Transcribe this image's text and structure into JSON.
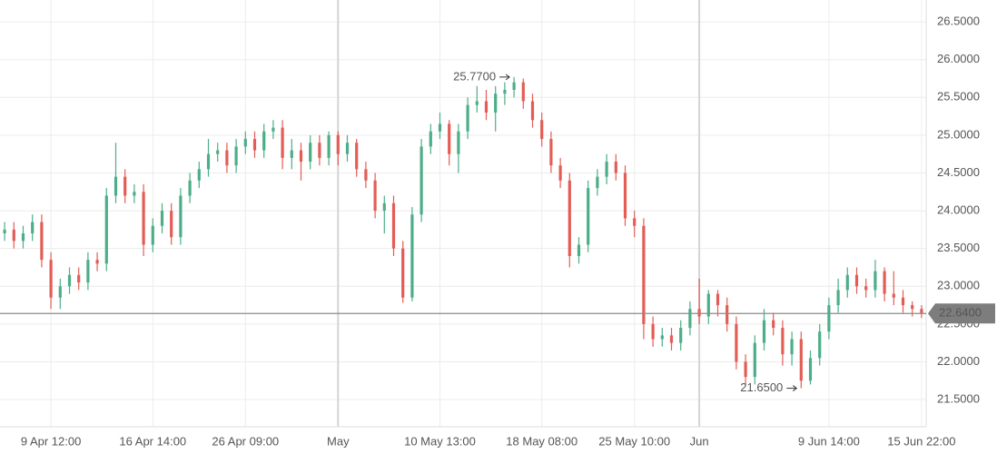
{
  "chart_data": {
    "type": "ohlc",
    "categories": [
      null,
      null,
      null,
      null,
      null,
      "9 Apr 12:00",
      null,
      null,
      null,
      null,
      null,
      null,
      null,
      null,
      null,
      null,
      "16 Apr 14:00",
      null,
      null,
      null,
      null,
      null,
      null,
      null,
      null,
      null,
      "26 Apr 09:00",
      null,
      null,
      null,
      null,
      null,
      null,
      null,
      null,
      null,
      "May",
      null,
      null,
      null,
      null,
      null,
      null,
      null,
      null,
      null,
      null,
      "10 May 13:00",
      null,
      null,
      null,
      null,
      null,
      null,
      null,
      null,
      null,
      null,
      "18 May 08:00",
      null,
      null,
      null,
      null,
      null,
      null,
      null,
      null,
      null,
      "25 May 10:00",
      null,
      null,
      null,
      null,
      null,
      null,
      "Jun",
      null,
      null,
      null,
      null,
      null,
      null,
      null,
      null,
      null,
      null,
      null,
      null,
      null,
      "9 Jun 14:00",
      null,
      null,
      null,
      null,
      null,
      null,
      null,
      null,
      null,
      "15 Jun 22:00"
    ],
    "open": [
      23.7,
      23.75,
      23.6,
      23.7,
      23.85,
      23.35,
      22.85,
      23.0,
      23.15,
      23.05,
      23.35,
      23.3,
      24.2,
      24.45,
      24.2,
      24.25,
      23.55,
      23.8,
      24.0,
      23.65,
      24.2,
      24.4,
      24.55,
      24.75,
      24.8,
      24.6,
      24.85,
      24.95,
      24.8,
      25.05,
      25.1,
      24.7,
      24.8,
      24.65,
      24.9,
      24.7,
      25.0,
      24.75,
      24.9,
      24.55,
      24.4,
      24.0,
      24.1,
      23.5,
      22.85,
      23.95,
      24.85,
      25.05,
      25.15,
      24.75,
      25.05,
      25.4,
      25.45,
      25.3,
      25.55,
      25.6,
      25.7,
      25.45,
      25.2,
      24.95,
      24.6,
      24.4,
      23.4,
      23.55,
      24.3,
      24.45,
      24.65,
      24.5,
      23.9,
      23.8,
      22.5,
      22.3,
      22.35,
      22.25,
      22.45,
      22.7,
      22.6,
      22.9,
      22.75,
      22.5,
      22.0,
      21.8,
      22.25,
      22.55,
      22.45,
      22.1,
      22.3,
      21.75,
      22.05,
      22.4,
      22.75,
      22.95,
      23.15,
      23.0,
      22.95,
      23.2,
      22.9,
      22.85,
      22.75,
      22.7
    ],
    "high": [
      23.85,
      23.85,
      23.8,
      23.95,
      23.95,
      23.45,
      23.1,
      23.25,
      23.25,
      23.45,
      23.45,
      24.3,
      24.9,
      24.55,
      24.35,
      24.35,
      23.9,
      24.1,
      24.1,
      24.3,
      24.5,
      24.65,
      24.95,
      24.9,
      24.9,
      24.95,
      25.05,
      25.05,
      25.15,
      25.2,
      25.2,
      24.95,
      24.9,
      25.0,
      25.0,
      25.05,
      25.05,
      25.0,
      24.95,
      24.65,
      24.5,
      24.2,
      24.2,
      23.6,
      24.05,
      24.95,
      25.15,
      25.3,
      25.2,
      25.15,
      25.5,
      25.65,
      25.6,
      25.65,
      25.7,
      25.77,
      25.75,
      25.55,
      25.3,
      25.05,
      24.7,
      24.5,
      23.65,
      24.4,
      24.55,
      24.75,
      24.75,
      24.6,
      24.0,
      23.9,
      22.6,
      22.45,
      22.45,
      22.55,
      22.8,
      23.1,
      22.95,
      22.95,
      22.85,
      22.6,
      22.1,
      22.35,
      22.7,
      22.65,
      22.55,
      22.4,
      22.4,
      22.15,
      22.5,
      22.85,
      23.1,
      23.25,
      23.25,
      23.1,
      23.35,
      23.25,
      23.2,
      22.95,
      22.8,
      22.75
    ],
    "low": [
      23.6,
      23.5,
      23.5,
      23.6,
      23.25,
      22.7,
      22.7,
      22.9,
      22.95,
      22.95,
      23.2,
      23.2,
      24.1,
      24.1,
      24.1,
      23.4,
      23.45,
      23.7,
      23.55,
      23.55,
      24.1,
      24.3,
      24.45,
      24.65,
      24.5,
      24.5,
      24.75,
      24.7,
      24.7,
      24.95,
      24.55,
      24.55,
      24.4,
      24.55,
      24.6,
      24.6,
      24.6,
      24.65,
      24.45,
      24.3,
      23.9,
      23.7,
      23.4,
      22.78,
      22.8,
      23.85,
      24.75,
      24.95,
      24.6,
      24.5,
      24.95,
      25.3,
      25.2,
      25.05,
      25.4,
      25.5,
      25.35,
      25.1,
      24.85,
      24.5,
      24.3,
      23.25,
      23.3,
      23.45,
      24.2,
      24.35,
      24.4,
      23.8,
      23.65,
      22.3,
      22.2,
      22.2,
      22.15,
      22.15,
      22.35,
      22.5,
      22.5,
      22.6,
      22.4,
      21.9,
      21.7,
      21.7,
      22.15,
      22.35,
      21.95,
      21.95,
      21.65,
      21.7,
      21.95,
      22.3,
      22.65,
      22.85,
      22.9,
      22.85,
      22.85,
      22.8,
      22.75,
      22.65,
      22.6,
      22.58
    ],
    "close": [
      23.75,
      23.6,
      23.7,
      23.85,
      23.35,
      22.85,
      23.0,
      23.15,
      23.05,
      23.35,
      23.3,
      24.2,
      24.45,
      24.2,
      24.25,
      23.55,
      23.8,
      24.0,
      23.65,
      24.2,
      24.4,
      24.55,
      24.75,
      24.8,
      24.6,
      24.85,
      24.95,
      24.8,
      25.05,
      25.1,
      24.7,
      24.8,
      24.65,
      24.9,
      24.7,
      25.0,
      24.75,
      24.9,
      24.55,
      24.4,
      24.0,
      24.1,
      23.5,
      22.85,
      23.95,
      24.85,
      25.05,
      25.15,
      24.75,
      25.05,
      25.4,
      25.45,
      25.3,
      25.55,
      25.6,
      25.7,
      25.45,
      25.2,
      24.95,
      24.6,
      24.4,
      23.4,
      23.55,
      24.3,
      24.45,
      24.65,
      24.5,
      23.9,
      23.8,
      22.5,
      22.3,
      22.35,
      22.25,
      22.45,
      22.7,
      22.6,
      22.9,
      22.75,
      22.5,
      22.0,
      21.8,
      22.25,
      22.55,
      22.45,
      22.1,
      22.3,
      21.75,
      22.05,
      22.4,
      22.75,
      22.95,
      23.15,
      23.0,
      22.95,
      23.2,
      22.9,
      22.85,
      22.75,
      22.7,
      22.64
    ],
    "up_color": "#4cae88",
    "down_color": "#e35d56",
    "ylim": [
      21.14,
      26.79
    ],
    "yticks": [
      {
        "value": 21.5,
        "label": "21.5000"
      },
      {
        "value": 22,
        "label": "22.0000"
      },
      {
        "value": 22.5,
        "label": "22.5000"
      },
      {
        "value": 23,
        "label": "23.0000"
      },
      {
        "value": 23.5,
        "label": "23.5000"
      },
      {
        "value": 24,
        "label": "24.0000"
      },
      {
        "value": 24.5,
        "label": "24.5000"
      },
      {
        "value": 25,
        "label": "25.0000"
      },
      {
        "value": 25.5,
        "label": "25.5000"
      },
      {
        "value": 26,
        "label": "26.0000"
      },
      {
        "value": 26.5,
        "label": "26.5000"
      }
    ],
    "high_marker": {
      "value": 25.77,
      "label": "25.7700"
    },
    "low_marker": {
      "value": 21.65,
      "label": "21.6500"
    },
    "last_price": {
      "value": 22.64,
      "label": "22.6400"
    },
    "grid": true
  }
}
